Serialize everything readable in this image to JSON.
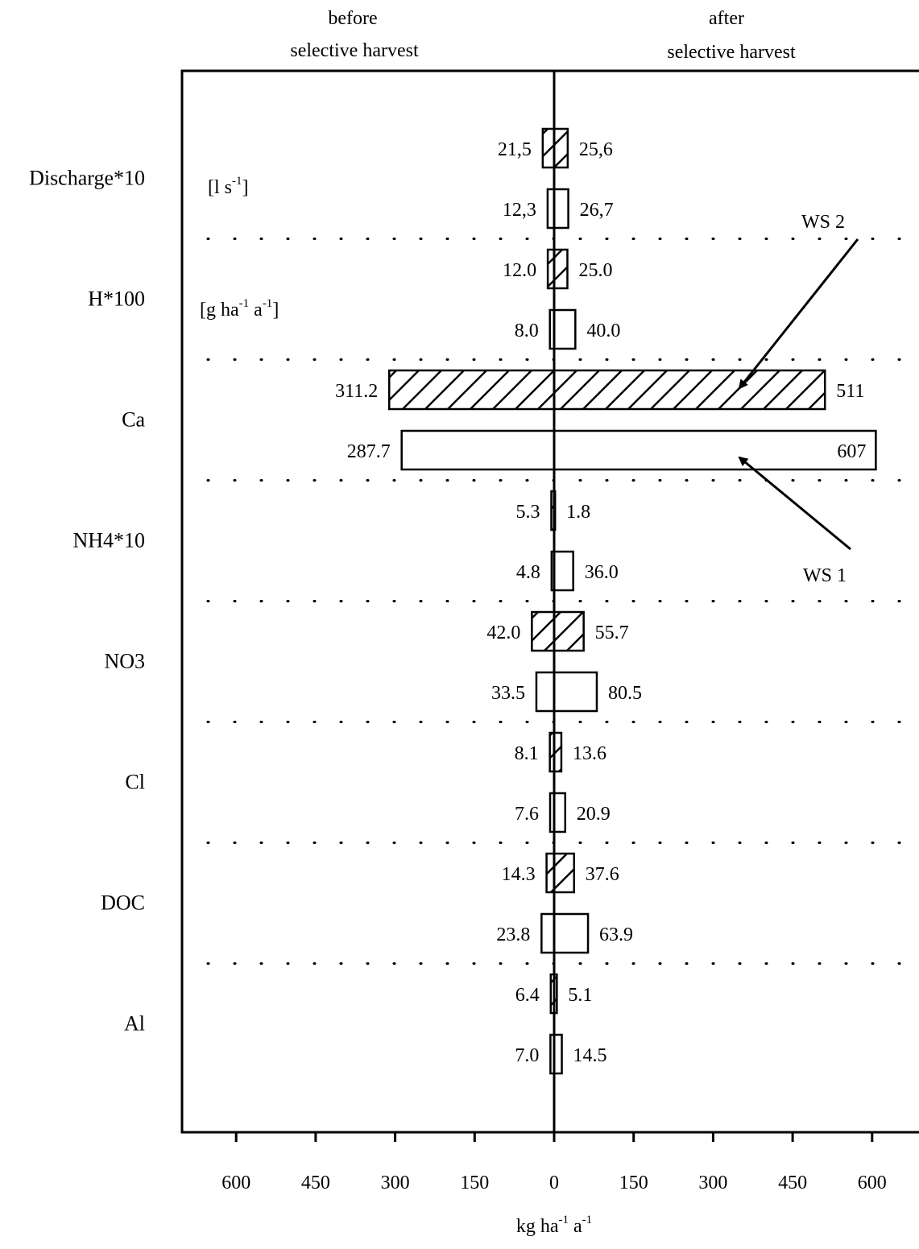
{
  "chart_data": {
    "type": "bar",
    "orientation": "horizontal-bidirectional",
    "header_left": [
      "before",
      "selective harvest"
    ],
    "header_right": [
      "after",
      "selective harvest"
    ],
    "xlabel": "kg ha-1 a-1",
    "xlim": [
      -600,
      600
    ],
    "x_ticks": [
      -600,
      -450,
      -300,
      -150,
      0,
      150,
      300,
      450,
      600
    ],
    "x_tick_labels": [
      "600",
      "450",
      "300",
      "150",
      "0",
      "150",
      "300",
      "450",
      "600"
    ],
    "grid": "dotted separators between categories",
    "series": [
      {
        "name": "WS 2",
        "fill": "hatched"
      },
      {
        "name": "WS 1",
        "fill": "open"
      }
    ],
    "categories": [
      {
        "name": "Discharge*10",
        "unit": "[l s-1]",
        "ws2": {
          "before": 21.5,
          "after": 25.6,
          "before_label": "21,5",
          "after_label": "25,6"
        },
        "ws1": {
          "before": 12.3,
          "after": 26.7,
          "before_label": "12,3",
          "after_label": "26,7"
        }
      },
      {
        "name": "H*100",
        "unit": "[g ha-1 a-1]",
        "ws2": {
          "before": 12.0,
          "after": 25.0,
          "before_label": "12.0",
          "after_label": "25.0"
        },
        "ws1": {
          "before": 8.0,
          "after": 40.0,
          "before_label": "8.0",
          "after_label": "40.0"
        }
      },
      {
        "name": "Ca",
        "unit": "",
        "ws2": {
          "before": 311.2,
          "after": 511,
          "before_label": "311.2",
          "after_label": "511"
        },
        "ws1": {
          "before": 287.7,
          "after": 607,
          "before_label": "287.7",
          "after_label": "607"
        }
      },
      {
        "name": "NH4*10",
        "unit": "",
        "ws2": {
          "before": 5.3,
          "after": 1.8,
          "before_label": "5.3",
          "after_label": "1.8"
        },
        "ws1": {
          "before": 4.8,
          "after": 36.0,
          "before_label": "4.8",
          "after_label": "36.0"
        }
      },
      {
        "name": "NO3",
        "unit": "",
        "ws2": {
          "before": 42.0,
          "after": 55.7,
          "before_label": "42.0",
          "after_label": "55.7"
        },
        "ws1": {
          "before": 33.5,
          "after": 80.5,
          "before_label": "33.5",
          "after_label": "80.5"
        }
      },
      {
        "name": "Cl",
        "unit": "",
        "ws2": {
          "before": 8.1,
          "after": 13.6,
          "before_label": "8.1",
          "after_label": "13.6"
        },
        "ws1": {
          "before": 7.6,
          "after": 20.9,
          "before_label": "7.6",
          "after_label": "20.9"
        }
      },
      {
        "name": "DOC",
        "unit": "",
        "ws2": {
          "before": 14.3,
          "after": 37.6,
          "before_label": "14.3",
          "after_label": "37.6"
        },
        "ws1": {
          "before": 23.8,
          "after": 63.9,
          "before_label": "23.8",
          "after_label": "63.9"
        }
      },
      {
        "name": "Al",
        "unit": "",
        "ws2": {
          "before": 6.4,
          "after": 5.1,
          "before_label": "6.4",
          "after_label": "5.1"
        },
        "ws1": {
          "before": 7.0,
          "after": 14.5,
          "before_label": "7.0",
          "after_label": "14.5"
        }
      }
    ],
    "annotations": [
      {
        "text": "WS 2",
        "points_to": "Ca WS 2 bar"
      },
      {
        "text": "WS 1",
        "points_to": "Ca WS 1 bar"
      }
    ]
  }
}
